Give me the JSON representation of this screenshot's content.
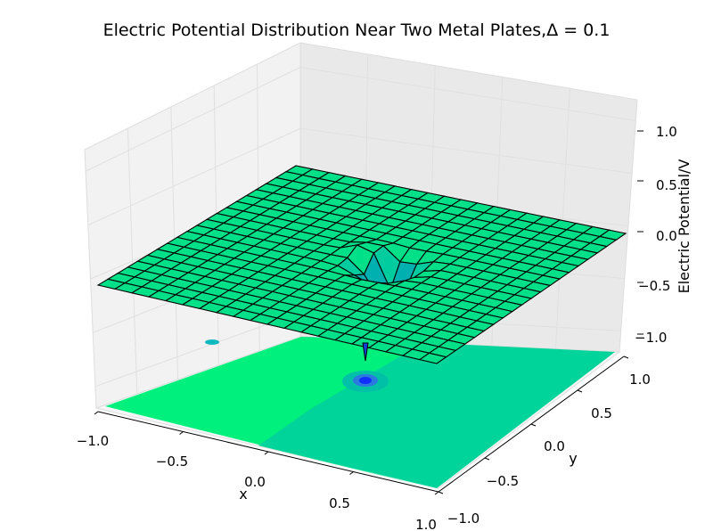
{
  "chart_data": {
    "type": "surface3d",
    "title": "Electric Potential Distribution Near Two Metal Plates,Δ = 0.1",
    "xlabel": "x",
    "ylabel": "y",
    "zlabel": "Electric Potential/V",
    "xlim": [
      -1.0,
      1.0
    ],
    "ylim": [
      -1.0,
      1.0
    ],
    "zlim": [
      -1.2,
      1.2
    ],
    "x_ticks": [
      "−1.0",
      "−0.5",
      "0.0",
      "0.5",
      "1.0"
    ],
    "y_ticks": [
      "−1.0",
      "−0.5",
      "0.0",
      "0.5",
      "1.0"
    ],
    "z_ticks": [
      "−1.0",
      "−0.5",
      "0.0",
      "0.5",
      "1.0"
    ],
    "grid": true,
    "grid_spacing": 0.1,
    "surface": {
      "baseline_potential": 0.0,
      "features": [
        {
          "kind": "dip",
          "x": 0.1,
          "y": 0.05,
          "value": -0.45
        },
        {
          "kind": "peak",
          "x": 0.0,
          "y": 0.1,
          "value": 0.25
        },
        {
          "kind": "spike",
          "x": 0.2,
          "y": -0.45,
          "value": -1.2
        }
      ]
    },
    "projection_contour": {
      "z_level": -1.2,
      "colormap": "winter",
      "colors": [
        "#00f07e",
        "#00d49a",
        "#0050d0",
        "#1030ff"
      ]
    },
    "surface_color": "#00e088",
    "edge_color": "#000000"
  }
}
